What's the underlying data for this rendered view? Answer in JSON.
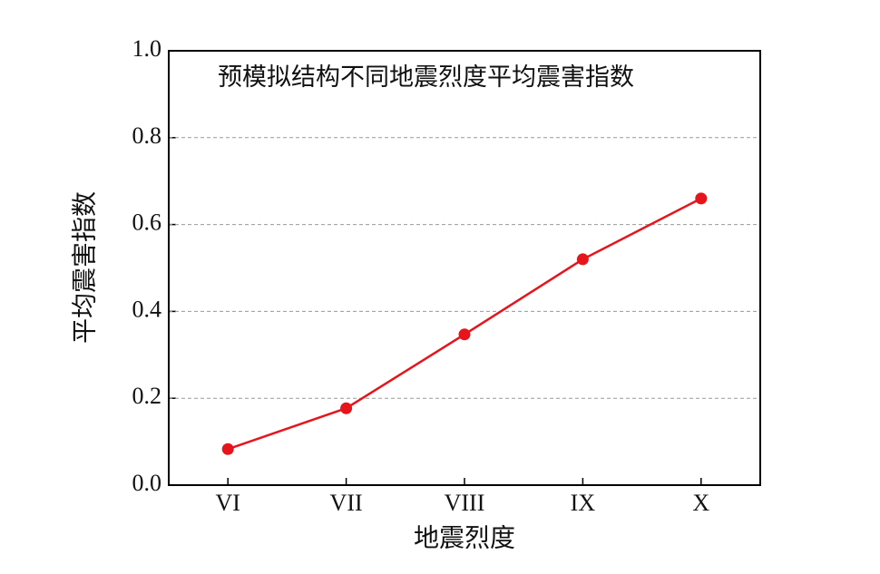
{
  "chart_data": {
    "type": "line",
    "title": "预模拟结构不同地震烈度平均震害指数",
    "x_label": "地震烈度",
    "y_label": "平均震害指数",
    "categories": [
      "VI",
      "VII",
      "VIII",
      "IX",
      "X"
    ],
    "values": [
      0.083,
      0.177,
      0.347,
      0.52,
      0.66
    ],
    "color": "#e8141c",
    "ylim": [
      0,
      1
    ],
    "yticks": [
      {
        "value": 0,
        "label": "0.0"
      },
      0.2,
      0.4,
      0.6,
      0.8,
      {
        "value": 1,
        "label": "1.0"
      }
    ],
    "grid": true
  }
}
